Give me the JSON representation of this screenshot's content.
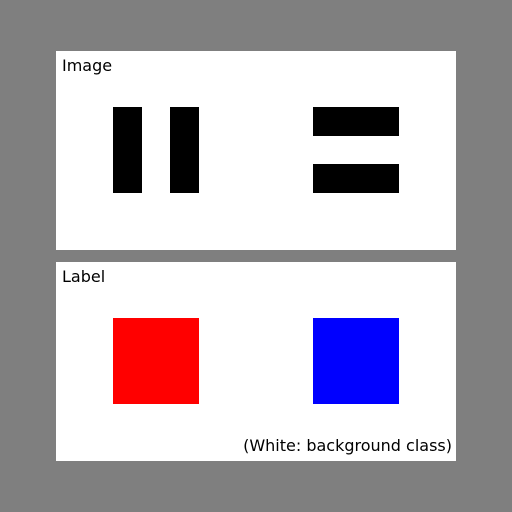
{
  "image_panel": {
    "title": "Image"
  },
  "label_panel": {
    "title": "Label",
    "note": "(White: background class)"
  },
  "colors": {
    "background": "#7f7f7f",
    "panel": "#ffffff",
    "bars": "#000000",
    "label_left": "#ff0000",
    "label_right": "#0000ff"
  }
}
